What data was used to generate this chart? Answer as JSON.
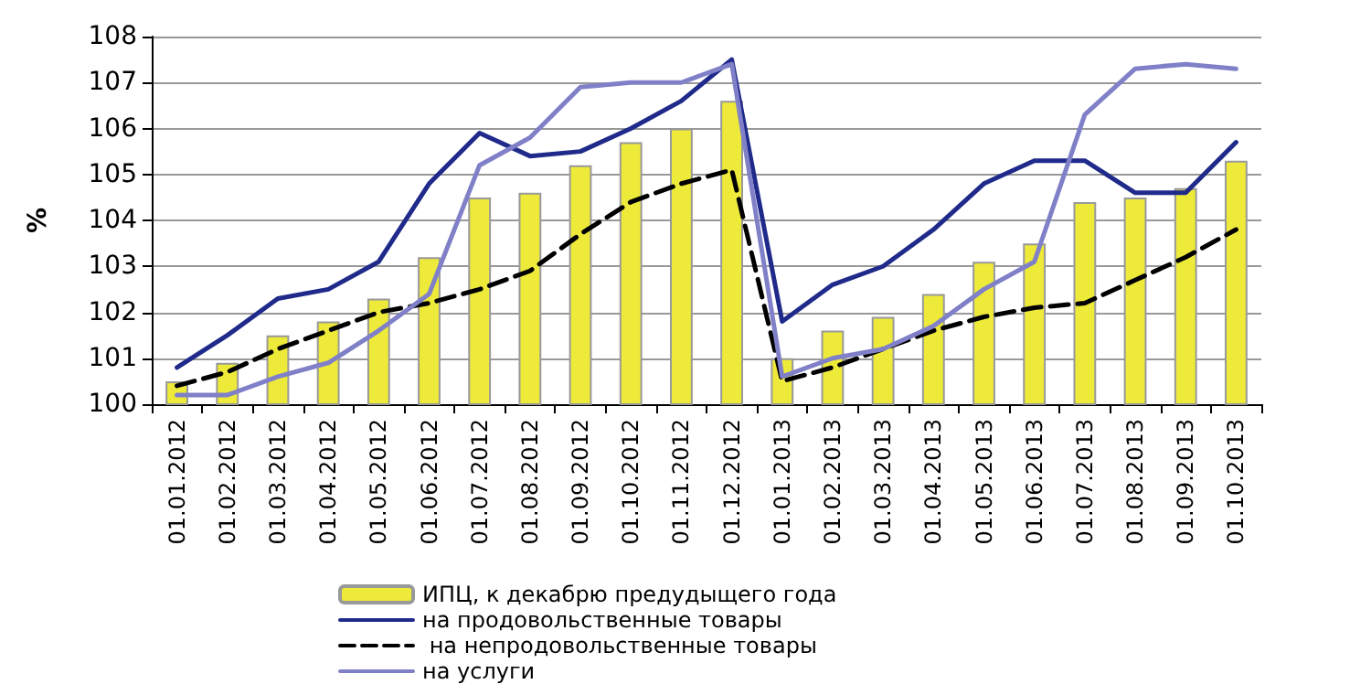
{
  "chart_data": {
    "type": "bar",
    "ylabel": "%",
    "categories": [
      "01.01.2012",
      "01.02.2012",
      "01.03.2012",
      "01.04.2012",
      "01.05.2012",
      "01.06.2012",
      "01.07.2012",
      "01.08.2012",
      "01.09.2012",
      "01.10.2012",
      "01.11.2012",
      "01.12.2012",
      "01.01.2013",
      "01.02.2013",
      "01.03.2013",
      "01.04.2013",
      "01.05.2013",
      "01.06.2013",
      "01.07.2013",
      "01.08.2013",
      "01.09.2013",
      "01.10.2013"
    ],
    "series": [
      {
        "name": "ИПЦ, к декабрю предудыщего года",
        "color": "#eeea3a",
        "values": [
          100.5,
          100.9,
          101.5,
          101.8,
          102.3,
          103.2,
          104.5,
          104.6,
          105.2,
          105.7,
          106.0,
          106.6,
          101.0,
          101.6,
          101.9,
          102.4,
          103.1,
          103.5,
          104.4,
          104.5,
          104.7,
          105.3
        ]
      },
      {
        "name": "на продовольственные товары",
        "type": "line",
        "color": "#1f2a8a",
        "line_style": "solid",
        "values": [
          100.8,
          101.5,
          102.3,
          102.5,
          103.1,
          104.8,
          105.9,
          105.4,
          105.5,
          106.0,
          106.6,
          107.5,
          101.8,
          102.6,
          103.0,
          103.8,
          104.8,
          105.3,
          105.3,
          104.6,
          104.6,
          105.7
        ]
      },
      {
        "name": " на непродовольственные товары",
        "type": "line",
        "color": "#000000",
        "line_style": "dashed",
        "values": [
          100.4,
          100.7,
          101.2,
          101.6,
          102.0,
          102.2,
          102.5,
          102.9,
          103.7,
          104.4,
          104.8,
          105.1,
          100.5,
          100.8,
          101.2,
          101.6,
          101.9,
          102.1,
          102.2,
          102.7,
          103.2,
          103.8
        ]
      },
      {
        "name": "на услуги",
        "type": "line",
        "color": "#8080c8",
        "line_style": "solid",
        "values": [
          100.2,
          100.2,
          100.6,
          100.9,
          101.6,
          102.4,
          105.2,
          105.8,
          106.9,
          107.0,
          107.0,
          107.4,
          100.6,
          101.0,
          101.2,
          101.7,
          102.5,
          103.1,
          106.3,
          107.3,
          107.4,
          107.3
        ]
      }
    ],
    "ylim": [
      100,
      108
    ],
    "yticks": [
      100,
      101,
      102,
      103,
      104,
      105,
      106,
      107,
      108
    ],
    "grid": "y",
    "legend": "bottom",
    "marker": "none"
  }
}
